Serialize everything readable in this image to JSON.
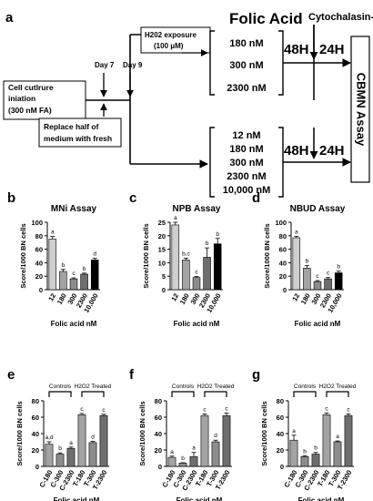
{
  "schematic": {
    "panel_label": "a",
    "start_box": [
      "Cell cutlrure",
      "iniation",
      "(300 nM FA)"
    ],
    "replace_box": [
      "Replace half of",
      "medium with fresh"
    ],
    "day7": "Day 7",
    "day9": "Day 9",
    "h2o2_box": [
      "H202 exposure",
      "(100 μM)"
    ],
    "folic_acid_header": "Folic Acid",
    "cytochalasin": "Cytochalasin-B",
    "upper_concentrations": [
      "180 nM",
      "300 nM",
      "2300 nM"
    ],
    "lower_concentrations": [
      "12 nM",
      "180 nM",
      "300 nM",
      "2300 nM",
      "10,000 nM"
    ],
    "time_48": "48H",
    "time_24": "24H",
    "assay_box": "CBMN Assay"
  },
  "panel_letters": [
    "b",
    "c",
    "d",
    "e",
    "f",
    "g"
  ],
  "group_labels": {
    "controls": "Controls",
    "treated": "H2O2 Treated"
  },
  "chart_data": [
    {
      "type": "bar",
      "panel": "b",
      "title": "MNi Assay",
      "xlabel": "Folic acid nM",
      "ylabel": "Score/1000 BN cells",
      "ylim": [
        0,
        100
      ],
      "yticks": [
        "0",
        "20",
        "40",
        "60",
        "80",
        "100"
      ],
      "categories": [
        "12",
        "180",
        "300",
        "2300",
        "10,000"
      ],
      "values": [
        75,
        27,
        16,
        23,
        44
      ],
      "errors": [
        4,
        3,
        1.5,
        1.5,
        2.5
      ],
      "letters": [
        "a",
        "b",
        "c",
        "b",
        "d"
      ],
      "colors": [
        "#cfcfcf",
        "#a3a3a3",
        "#8c8c8c",
        "#6e6e6e",
        "#000000"
      ]
    },
    {
      "type": "bar",
      "panel": "c",
      "title": "NPB Assay",
      "xlabel": "Folic acid nM",
      "ylabel": "Score/1000 BN cells",
      "ylim": [
        0,
        25
      ],
      "yticks": [
        "0",
        "5",
        "10",
        "15",
        "20",
        "25"
      ],
      "categories": [
        "12",
        "180",
        "300",
        "2300",
        "10,000"
      ],
      "values": [
        24,
        11,
        4.5,
        12,
        17
      ],
      "errors": [
        1,
        0.7,
        0.4,
        3.5,
        2
      ],
      "letters": [
        "a",
        "b,c",
        "c",
        "b",
        "b"
      ],
      "colors": [
        "#cfcfcf",
        "#a3a3a3",
        "#8c8c8c",
        "#6e6e6e",
        "#000000"
      ]
    },
    {
      "type": "bar",
      "panel": "d",
      "title": "NBUD Assay",
      "xlabel": "Folic acid nM",
      "ylabel": "Score/1000 BN cells",
      "ylim": [
        0,
        100
      ],
      "yticks": [
        "0",
        "20",
        "40",
        "60",
        "80",
        "100"
      ],
      "categories": [
        "12",
        "180",
        "300",
        "2300",
        "10,000"
      ],
      "values": [
        77,
        32,
        12,
        16,
        25
      ],
      "errors": [
        2,
        4,
        1.5,
        2,
        2.5
      ],
      "letters": [
        "a",
        "b",
        "c",
        "c",
        "b"
      ],
      "colors": [
        "#cfcfcf",
        "#a3a3a3",
        "#8c8c8c",
        "#6e6e6e",
        "#000000"
      ]
    },
    {
      "type": "bar",
      "panel": "e",
      "title": "",
      "xlabel": "Folic acid nM",
      "ylabel": "Score/1000 BN cells",
      "ylim": [
        0,
        80
      ],
      "yticks": [
        "0",
        "20",
        "40",
        "60",
        "80"
      ],
      "categories": [
        "C-180",
        "C-300",
        "C-2300",
        "T-180",
        "T-300",
        "T-2300"
      ],
      "values": [
        27,
        15,
        22,
        63,
        29,
        62
      ],
      "errors": [
        3,
        1.5,
        1.5,
        1.5,
        1.5,
        1.5
      ],
      "letters": [
        "a,d",
        "b",
        "a",
        "c",
        "d",
        "c"
      ],
      "colors": [
        "#a3a3a3",
        "#8c8c8c",
        "#6e6e6e",
        "#a3a3a3",
        "#8c8c8c",
        "#6e6e6e"
      ]
    },
    {
      "type": "bar",
      "panel": "f",
      "title": "",
      "xlabel": "Folic acid nM",
      "ylabel": "Score/1000 BN cells",
      "ylim": [
        0,
        80
      ],
      "yticks": [
        "0",
        "20",
        "40",
        "60",
        "80"
      ],
      "categories": [
        "C-180",
        "C-300",
        "C-2300",
        "T-180",
        "T-300",
        "T-2300"
      ],
      "values": [
        11,
        4,
        12,
        62,
        30,
        62
      ],
      "errors": [
        1.5,
        0.5,
        5,
        2,
        2,
        3
      ],
      "letters": [
        "a",
        "b",
        "a",
        "c",
        "d",
        "c"
      ],
      "colors": [
        "#a3a3a3",
        "#8c8c8c",
        "#6e6e6e",
        "#a3a3a3",
        "#8c8c8c",
        "#6e6e6e"
      ]
    },
    {
      "type": "bar",
      "panel": "g",
      "title": "",
      "xlabel": "Folic acid nM",
      "ylabel": "Score/1000 BN cells",
      "ylim": [
        0,
        80
      ],
      "yticks": [
        "0",
        "20",
        "40",
        "60",
        "80"
      ],
      "categories": [
        "C-180",
        "C-300",
        "C-2300",
        "T-180",
        "T-300",
        "T-2300"
      ],
      "values": [
        32,
        12,
        15,
        63,
        30,
        62
      ],
      "errors": [
        6,
        1,
        2,
        2,
        1,
        2
      ],
      "letters": [
        "a",
        "b",
        "b",
        "c",
        "a",
        "c"
      ],
      "colors": [
        "#a3a3a3",
        "#8c8c8c",
        "#6e6e6e",
        "#a3a3a3",
        "#8c8c8c",
        "#6e6e6e"
      ]
    }
  ]
}
